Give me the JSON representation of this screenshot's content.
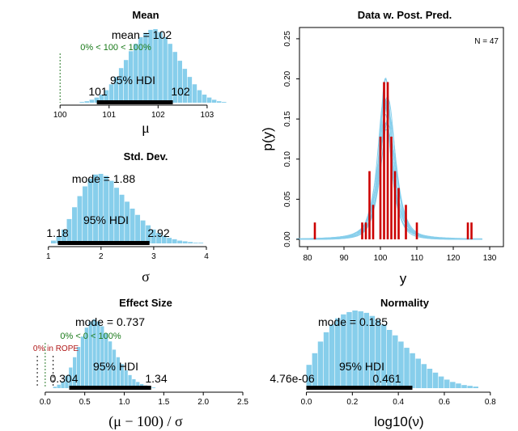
{
  "chart_data": [
    {
      "type": "bar",
      "title": "Mean",
      "xlabel": "μ",
      "xlim": [
        99.6,
        103.2
      ],
      "xticks": [
        "100",
        "101",
        "102",
        "103"
      ],
      "bin_width": 0.1,
      "bins_start": 100.4,
      "bar_heights": [
        0.01,
        0.02,
        0.04,
        0.07,
        0.11,
        0.17,
        0.25,
        0.35,
        0.47,
        0.58,
        0.7,
        0.8,
        0.89,
        0.95,
        0.99,
        1.0,
        0.96,
        0.89,
        0.8,
        0.69,
        0.57,
        0.46,
        0.35,
        0.25,
        0.17,
        0.11,
        0.07,
        0.04,
        0.02,
        0.01
      ],
      "mode_label": "mean = 102",
      "hdi_label": "95% HDI",
      "hdi": [
        100.75,
        102.3
      ],
      "hdi_low_label": "101",
      "hdi_high_label": "102",
      "comp_value": 100,
      "comp_label": "0% < 100 < 100%"
    },
    {
      "type": "bar",
      "title": "Std. Dev.",
      "xlabel": "σ",
      "xlim": [
        0.85,
        4.2
      ],
      "xticks": [
        "1",
        "2",
        "3",
        "4"
      ],
      "bin_width": 0.1,
      "bins_start": 1.05,
      "bar_heights": [
        0.04,
        0.1,
        0.2,
        0.35,
        0.52,
        0.68,
        0.82,
        0.93,
        0.99,
        1.0,
        0.97,
        0.9,
        0.8,
        0.7,
        0.6,
        0.5,
        0.41,
        0.33,
        0.26,
        0.2,
        0.15,
        0.11,
        0.08,
        0.06,
        0.04,
        0.03,
        0.02,
        0.01,
        0.01
      ],
      "mode_label": "mode = 1.88",
      "hdi_label": "95% HDI",
      "hdi": [
        1.18,
        2.92
      ],
      "hdi_low_label": "1.18",
      "hdi_high_label": "2.92"
    },
    {
      "type": "bar",
      "title": "Effect Size",
      "xlabel": "(μ − 100) / σ",
      "xlim": [
        -0.06,
        2.5
      ],
      "xticks": [
        "0.0",
        "0.5",
        "1.0",
        "1.5",
        "2.0",
        "2.5"
      ],
      "bin_width": 0.05,
      "bins_start": 0.1,
      "bar_heights": [
        0.02,
        0.05,
        0.1,
        0.18,
        0.3,
        0.45,
        0.6,
        0.75,
        0.88,
        0.97,
        1.0,
        0.97,
        0.9,
        0.8,
        0.68,
        0.56,
        0.45,
        0.35,
        0.26,
        0.19,
        0.13,
        0.09,
        0.06,
        0.04,
        0.02,
        0.01
      ],
      "mode_label": "mode = 0.737",
      "hdi_label": "95% HDI",
      "hdi": [
        0.304,
        1.34
      ],
      "hdi_low_label": "0.304",
      "hdi_high_label": "1.34",
      "comp_value": 0,
      "comp_label": "0% < 0 < 100%",
      "rope": [
        -0.1,
        0.1
      ],
      "rope_label": "0% in ROPE"
    },
    {
      "type": "bar",
      "title": "Normality",
      "xlabel": "log10(ν)",
      "xlim": [
        -0.03,
        0.85
      ],
      "xticks": [
        "0.0",
        "0.2",
        "0.4",
        "0.6",
        "0.8"
      ],
      "bin_width": 0.025,
      "bins_start": 0.0,
      "bar_heights": [
        0.3,
        0.45,
        0.6,
        0.72,
        0.82,
        0.9,
        0.95,
        0.98,
        1.0,
        0.99,
        0.97,
        0.93,
        0.88,
        0.82,
        0.75,
        0.68,
        0.6,
        0.52,
        0.45,
        0.38,
        0.31,
        0.25,
        0.2,
        0.15,
        0.11,
        0.08,
        0.06,
        0.04,
        0.03,
        0.02
      ],
      "mode_label": "mode = 0.185",
      "hdi_label": "95% HDI",
      "hdi": [
        0.0,
        0.461
      ],
      "hdi_low_label": "4.76e-06",
      "hdi_high_label": "0.461"
    },
    {
      "type": "line",
      "title": "Data w. Post. Pred.",
      "xlabel": "y",
      "ylabel": "p(y)",
      "xlim": [
        75,
        130
      ],
      "ylim": [
        0,
        0.26
      ],
      "xticks": [
        "80",
        "90",
        "100",
        "110",
        "120",
        "130"
      ],
      "yticks": [
        "0.00",
        "0.05",
        "0.10",
        "0.15",
        "0.20",
        "0.25"
      ],
      "annotation": "N = 47",
      "posterior_curves": [
        {
          "mu": 101.5,
          "sigma": 1.7,
          "nu": 1.5
        },
        {
          "mu": 101.8,
          "sigma": 2.0,
          "nu": 2.0
        },
        {
          "mu": 101.2,
          "sigma": 1.9,
          "nu": 1.3
        },
        {
          "mu": 102.1,
          "sigma": 2.1,
          "nu": 3.0
        },
        {
          "mu": 101.6,
          "sigma": 2.4,
          "nu": 1.8
        },
        {
          "mu": 101.4,
          "sigma": 1.8,
          "nu": 2.5
        },
        {
          "mu": 101.9,
          "sigma": 2.6,
          "nu": 4.0
        },
        {
          "mu": 101.3,
          "sigma": 2.2,
          "nu": 1.6
        },
        {
          "mu": 101.7,
          "sigma": 1.9,
          "nu": 1.2
        },
        {
          "mu": 102.3,
          "sigma": 2.3,
          "nu": 2.2
        },
        {
          "mu": 101.0,
          "sigma": 2.0,
          "nu": 1.9
        },
        {
          "mu": 101.6,
          "sigma": 2.8,
          "nu": 6.0
        }
      ],
      "data_histogram": {
        "x": [
          82,
          95,
          96,
          97,
          98,
          100,
          101,
          102,
          103,
          104,
          105,
          107,
          110,
          124,
          125
        ],
        "density": [
          0.021,
          0.021,
          0.021,
          0.085,
          0.043,
          0.128,
          0.196,
          0.196,
          0.128,
          0.085,
          0.064,
          0.043,
          0.021,
          0.021,
          0.021
        ]
      }
    }
  ]
}
